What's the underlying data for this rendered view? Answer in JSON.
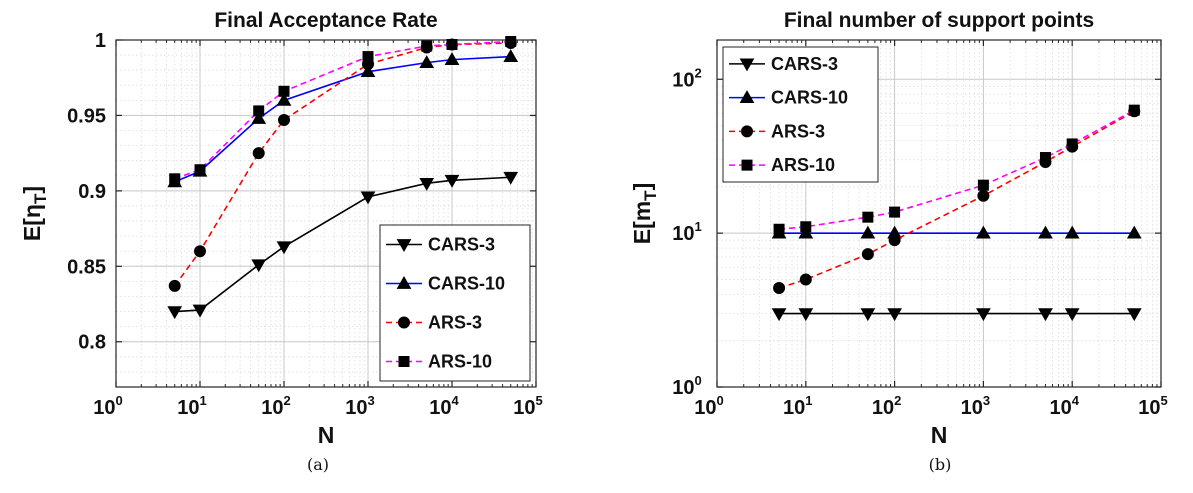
{
  "chart_data": [
    {
      "type": "line",
      "title": "Final Acceptance Rate",
      "xlabel": "N",
      "ylabel": "E[η",
      "ylabel_sub": "T",
      "ylabel_close": "]",
      "caption": "(a)",
      "x_scale": "log",
      "xlim": [
        1,
        100000
      ],
      "ylim": [
        0.77,
        1.0
      ],
      "y_scale": "linear",
      "x_tick_base": "10",
      "x_tick_exponents": [
        "0",
        "1",
        "2",
        "3",
        "4",
        "5"
      ],
      "y_ticks": [
        "0.8",
        "0.85",
        "0.9",
        "0.95",
        "1"
      ],
      "grid": true,
      "legend_position": "lower-right",
      "x": [
        5,
        10,
        50,
        100,
        1000,
        5000,
        10000,
        50000
      ],
      "series": [
        {
          "name": "CARS-3",
          "color": "#000000",
          "marker": "triangle-down",
          "dash": "solid",
          "values": [
            0.82,
            0.821,
            0.851,
            0.863,
            0.896,
            0.905,
            0.907,
            0.909
          ]
        },
        {
          "name": "CARS-10",
          "color": "#0000ff",
          "marker": "triangle-up",
          "dash": "solid",
          "values": [
            0.906,
            0.913,
            0.948,
            0.96,
            0.979,
            0.985,
            0.987,
            0.989
          ]
        },
        {
          "name": "ARS-3",
          "color": "#ff0000",
          "marker": "circle",
          "dash": "dashed",
          "values": [
            0.837,
            0.86,
            0.925,
            0.947,
            0.984,
            0.995,
            0.997,
            0.998
          ]
        },
        {
          "name": "ARS-10",
          "color": "#ff00ff",
          "marker": "square",
          "dash": "dashed",
          "values": [
            0.908,
            0.914,
            0.953,
            0.966,
            0.989,
            0.996,
            0.997,
            0.999
          ]
        }
      ]
    },
    {
      "type": "line",
      "title": "Final number of support points",
      "xlabel": "N",
      "ylabel": "E[m",
      "ylabel_sub": "T",
      "ylabel_close": "]",
      "caption": "(b)",
      "x_scale": "log",
      "y_scale": "log",
      "xlim": [
        1,
        100000
      ],
      "ylim": [
        1,
        180
      ],
      "x_tick_base": "10",
      "x_tick_exponents": [
        "0",
        "1",
        "2",
        "3",
        "4",
        "5"
      ],
      "y_tick_base": "10",
      "y_tick_exponents": [
        "0",
        "1",
        "2"
      ],
      "grid": true,
      "legend_position": "upper-left",
      "x": [
        5,
        10,
        50,
        100,
        1000,
        5000,
        10000,
        50000
      ],
      "series": [
        {
          "name": "CARS-3",
          "color": "#000000",
          "marker": "triangle-down",
          "dash": "solid",
          "values": [
            3,
            3,
            3,
            3,
            3,
            3,
            3,
            3
          ]
        },
        {
          "name": "CARS-10",
          "color": "#0000ff",
          "marker": "triangle-up",
          "dash": "solid",
          "values": [
            10,
            10,
            10,
            10,
            10,
            10,
            10,
            10
          ]
        },
        {
          "name": "ARS-3",
          "color": "#ff0000",
          "marker": "circle",
          "dash": "dashed",
          "values": [
            4.4,
            5.0,
            7.3,
            9.0,
            17.5,
            29.0,
            36.5,
            62.0
          ]
        },
        {
          "name": "ARS-10",
          "color": "#ff00ff",
          "marker": "square",
          "dash": "dashed",
          "values": [
            10.6,
            11.0,
            12.7,
            13.7,
            20.5,
            31.0,
            38.0,
            63.0
          ]
        }
      ]
    }
  ]
}
